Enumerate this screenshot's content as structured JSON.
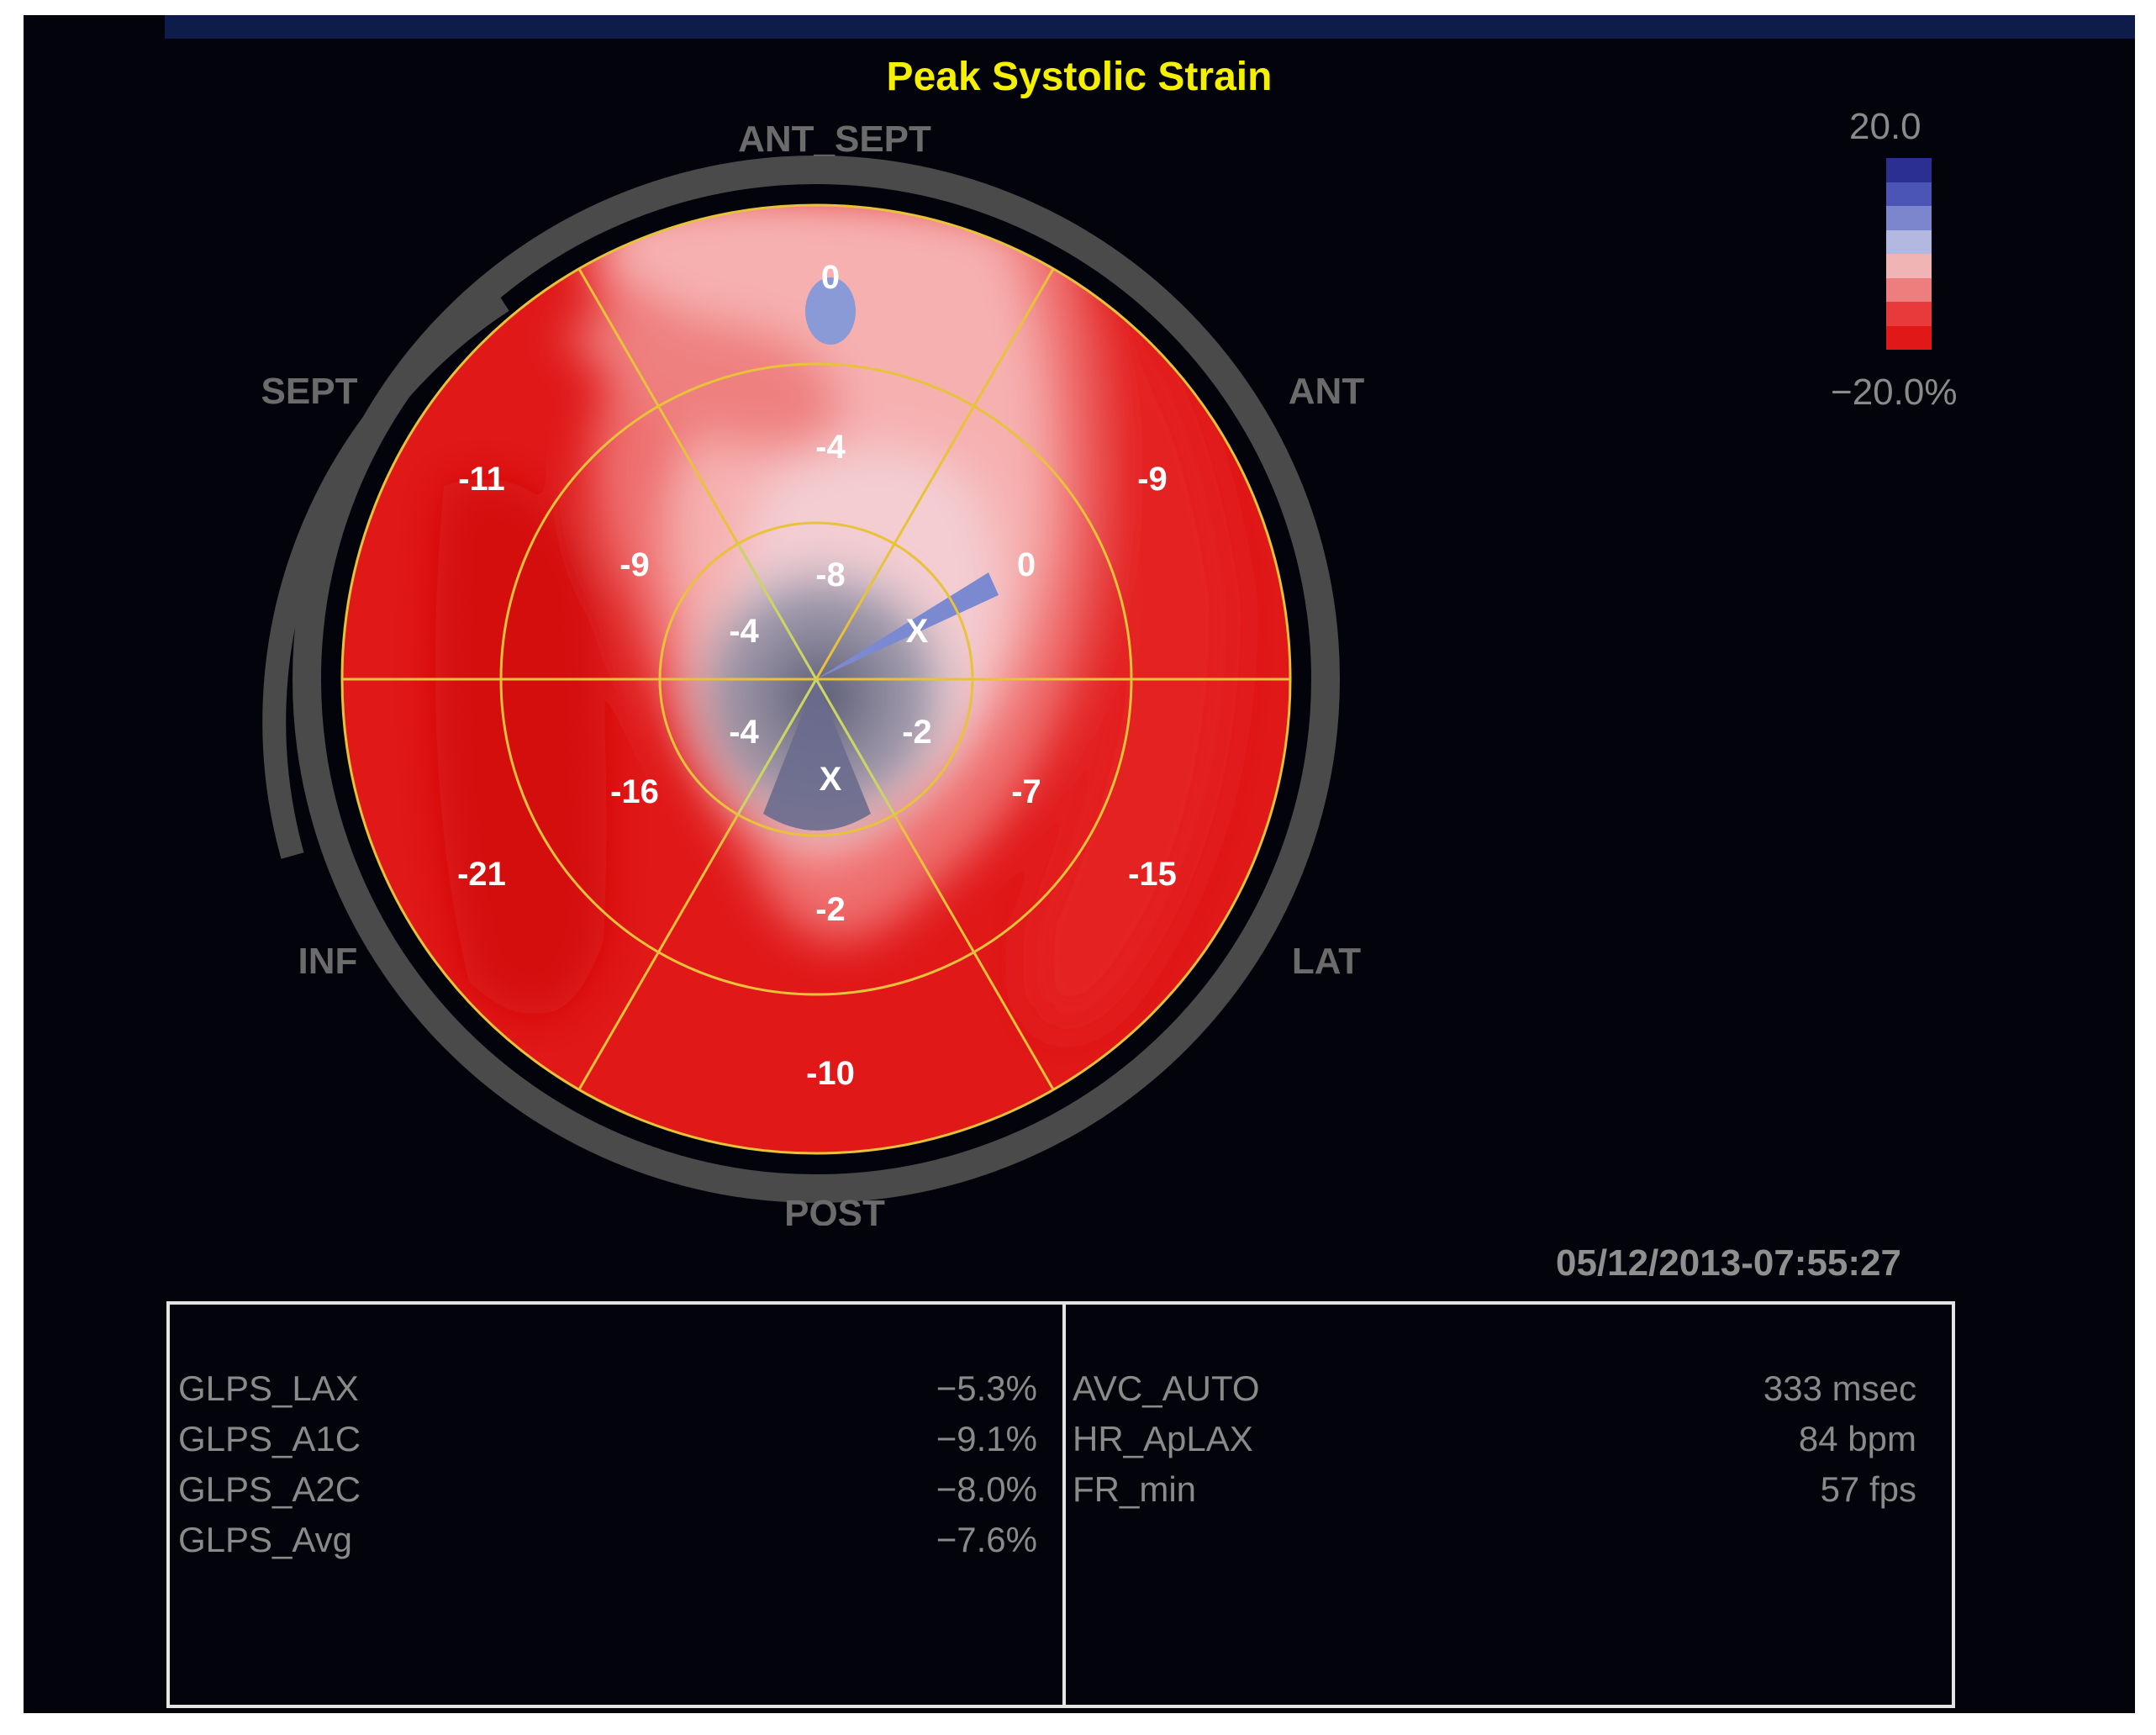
{
  "title": "Peak Systolic Strain",
  "scale": {
    "max_label": "20.0",
    "min_label": "−20.0%",
    "colors": [
      "#2b2f8f",
      "#4a55b5",
      "#7b86cc",
      "#b2b8e0",
      "#f0b4b4",
      "#ee7e7e",
      "#e83a3a",
      "#e01818"
    ]
  },
  "sectors": {
    "ant_sept": "ANT_SEPT",
    "ant": "ANT",
    "lat": "LAT",
    "post": "POST",
    "inf": "INF",
    "sept": "SEPT"
  },
  "segments": {
    "basal": [
      "0",
      "-9",
      "-15",
      "-10",
      "-21",
      "-11"
    ],
    "mid": [
      "-4",
      "0",
      "-7",
      "-2",
      "-16",
      "-9"
    ],
    "apical": [
      "-8",
      "X",
      "-2",
      "X",
      "-4",
      "-4"
    ]
  },
  "colors": {
    "accent_title": "#f5f000",
    "grid_lines": "#e8c23a",
    "severe_red": "#e01818",
    "mild_pink": "#f4c0c0",
    "positive_blue": "#7e8fd0",
    "akinetic_gray": "#5e6078",
    "background": "#03040b"
  },
  "timestamp": "05/12/2013-07:55:27",
  "stats_left": [
    {
      "name": "GLPS_LAX",
      "value": "−5.3%"
    },
    {
      "name": "GLPS_A1C",
      "value": "−9.1%"
    },
    {
      "name": "GLPS_A2C",
      "value": "−8.0%"
    },
    {
      "name": "GLPS_Avg",
      "value": "−7.6%"
    }
  ],
  "stats_right": [
    {
      "name": "AVC_AUTO",
      "value": "333 msec"
    },
    {
      "name": "HR_ApLAX",
      "value": "84 bpm"
    },
    {
      "name": "FR_min",
      "value": "57 fps"
    }
  ]
}
